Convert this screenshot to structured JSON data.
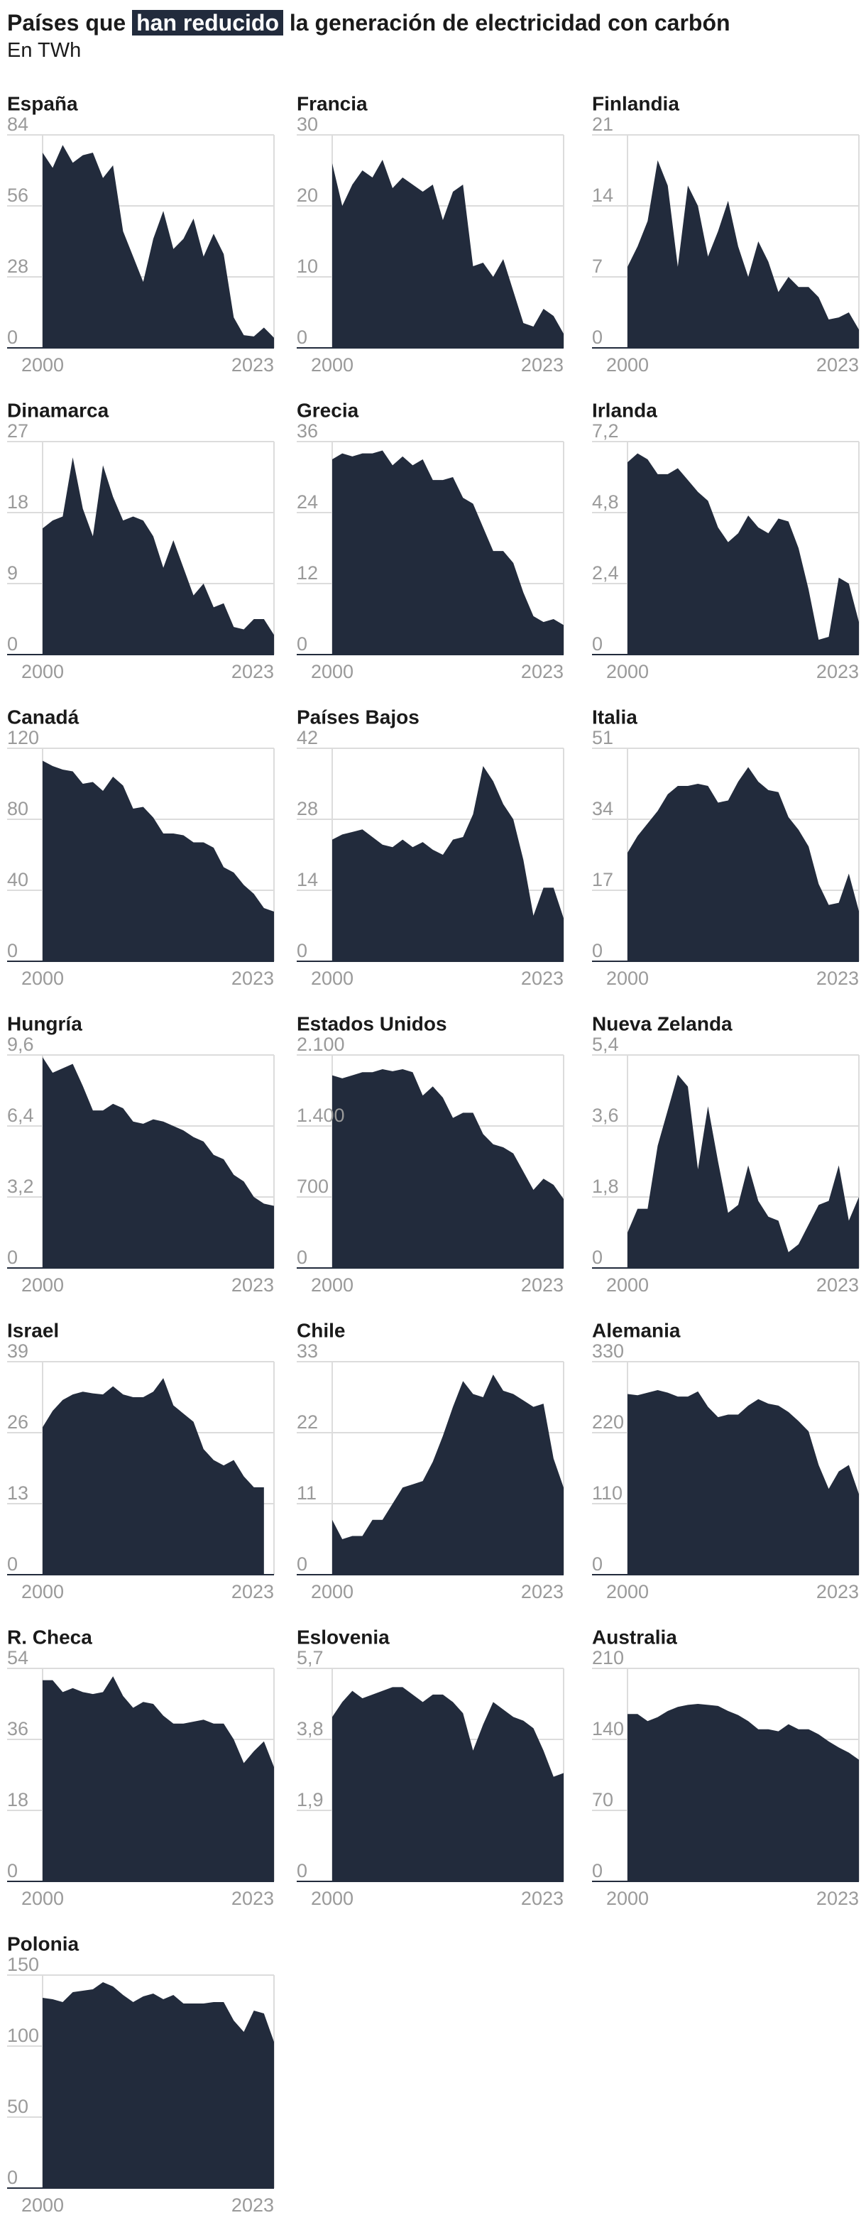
{
  "title_parts": [
    "Países que",
    "han reducido",
    "la generación de electricidad con carbón"
  ],
  "subtitle": "En TWh",
  "chart_data": [
    {
      "type": "area",
      "title": "España",
      "x": [
        2000,
        2001,
        2002,
        2003,
        2004,
        2005,
        2006,
        2007,
        2008,
        2009,
        2010,
        2011,
        2012,
        2013,
        2014,
        2015,
        2016,
        2017,
        2018,
        2019,
        2020,
        2021,
        2022,
        2023
      ],
      "xticks": [
        2000,
        2023
      ],
      "values": [
        77,
        71,
        80,
        73,
        76,
        77,
        67,
        72,
        46,
        36,
        26,
        43,
        54,
        39,
        43,
        51,
        36,
        45,
        37,
        12,
        5,
        4.5,
        8,
        4
      ],
      "ylim": [
        0,
        84
      ],
      "yticks": [
        0,
        28,
        56,
        84
      ],
      "color": "#222b3c"
    },
    {
      "type": "area",
      "title": "Francia",
      "x": [
        2000,
        2001,
        2002,
        2003,
        2004,
        2005,
        2006,
        2007,
        2008,
        2009,
        2010,
        2011,
        2012,
        2013,
        2014,
        2015,
        2016,
        2017,
        2018,
        2019,
        2020,
        2021,
        2022,
        2023
      ],
      "xticks": [
        2000,
        2023
      ],
      "values": [
        26,
        20,
        23,
        25,
        24,
        26.5,
        22.5,
        24,
        23,
        22,
        23,
        18,
        22,
        23,
        11.5,
        12,
        10,
        12.5,
        8,
        3.5,
        3,
        5.5,
        4.5,
        2
      ],
      "ylim": [
        0,
        30
      ],
      "yticks": [
        0,
        10,
        20,
        30
      ],
      "color": "#222b3c"
    },
    {
      "type": "area",
      "title": "Finlandia",
      "x": [
        2000,
        2001,
        2002,
        2003,
        2004,
        2005,
        2006,
        2007,
        2008,
        2009,
        2010,
        2011,
        2012,
        2013,
        2014,
        2015,
        2016,
        2017,
        2018,
        2019,
        2020,
        2021,
        2022,
        2023
      ],
      "xticks": [
        2000,
        2023
      ],
      "values": [
        8,
        10,
        12.5,
        18.5,
        16,
        8,
        16,
        14,
        9,
        11.5,
        14.5,
        10,
        7,
        10.5,
        8.5,
        5.5,
        7,
        6,
        6,
        5,
        2.8,
        3,
        3.5,
        1.8
      ],
      "ylim": [
        0,
        21
      ],
      "yticks": [
        0,
        7,
        14,
        21
      ],
      "color": "#222b3c"
    },
    {
      "type": "area",
      "title": "Dinamarca",
      "x": [
        2000,
        2001,
        2002,
        2003,
        2004,
        2005,
        2006,
        2007,
        2008,
        2009,
        2010,
        2011,
        2012,
        2013,
        2014,
        2015,
        2016,
        2017,
        2018,
        2019,
        2020,
        2021,
        2022,
        2023
      ],
      "xticks": [
        2000,
        2023
      ],
      "values": [
        16,
        17,
        17.5,
        25,
        18.5,
        15,
        24,
        20,
        17,
        17.5,
        17,
        15,
        11,
        14.5,
        11,
        7.5,
        9,
        6,
        6.5,
        3.5,
        3.2,
        4.5,
        4.5,
        2.5
      ],
      "ylim": [
        0,
        27
      ],
      "yticks": [
        0,
        9,
        18,
        27
      ],
      "color": "#222b3c"
    },
    {
      "type": "area",
      "title": "Grecia",
      "x": [
        2000,
        2001,
        2002,
        2003,
        2004,
        2005,
        2006,
        2007,
        2008,
        2009,
        2010,
        2011,
        2012,
        2013,
        2014,
        2015,
        2016,
        2017,
        2018,
        2019,
        2020,
        2021,
        2022,
        2023
      ],
      "xticks": [
        2000,
        2023
      ],
      "values": [
        33,
        34,
        33.5,
        34,
        34,
        34.5,
        32,
        33.5,
        32,
        33,
        29.5,
        29.5,
        30,
        26.5,
        25.5,
        21.5,
        17.5,
        17.5,
        15.5,
        10.5,
        6.5,
        5.5,
        6,
        5
      ],
      "ylim": [
        0,
        36
      ],
      "yticks": [
        0,
        12,
        24,
        36
      ],
      "color": "#222b3c"
    },
    {
      "type": "area",
      "title": "Irlanda",
      "x": [
        2000,
        2001,
        2002,
        2003,
        2004,
        2005,
        2006,
        2007,
        2008,
        2009,
        2010,
        2011,
        2012,
        2013,
        2014,
        2015,
        2016,
        2017,
        2018,
        2019,
        2020,
        2021,
        2022,
        2023
      ],
      "xticks": [
        2000,
        2023
      ],
      "values": [
        6.5,
        6.8,
        6.6,
        6.1,
        6.1,
        6.3,
        5.9,
        5.5,
        5.2,
        4.3,
        3.8,
        4.1,
        4.7,
        4.3,
        4.1,
        4.6,
        4.5,
        3.6,
        2.2,
        0.5,
        0.6,
        2.6,
        2.4,
        1.1
      ],
      "ylim": [
        0,
        7.2
      ],
      "yticks": [
        0,
        {
          "value": 2.4,
          "label": "2,4"
        },
        {
          "value": 4.8,
          "label": "4,8"
        },
        {
          "value": 7.2,
          "label": "7,2"
        }
      ],
      "color": "#222b3c"
    },
    {
      "type": "area",
      "title": "Canadá",
      "x": [
        2000,
        2001,
        2002,
        2003,
        2004,
        2005,
        2006,
        2007,
        2008,
        2009,
        2010,
        2011,
        2012,
        2013,
        2014,
        2015,
        2016,
        2017,
        2018,
        2019,
        2020,
        2021,
        2022,
        2023
      ],
      "xticks": [
        2000,
        2023
      ],
      "values": [
        113,
        110,
        108,
        107,
        100,
        101,
        96,
        104,
        99,
        86,
        87,
        81,
        72,
        72,
        71,
        67,
        67,
        64,
        53,
        50,
        43,
        38,
        30,
        28
      ],
      "ylim": [
        0,
        120
      ],
      "yticks": [
        0,
        40,
        80,
        120
      ],
      "color": "#222b3c"
    },
    {
      "type": "area",
      "title": "Países Bajos",
      "x": [
        2000,
        2001,
        2002,
        2003,
        2004,
        2005,
        2006,
        2007,
        2008,
        2009,
        2010,
        2011,
        2012,
        2013,
        2014,
        2015,
        2016,
        2017,
        2018,
        2019,
        2020,
        2021,
        2022,
        2023
      ],
      "xticks": [
        2000,
        2023
      ],
      "values": [
        24,
        25,
        25.5,
        26,
        24.5,
        23,
        22.5,
        24,
        22.5,
        23.5,
        22,
        21,
        24,
        24.5,
        29,
        38.5,
        35.5,
        31,
        28,
        20,
        9,
        14.5,
        14.5,
        8.5
      ],
      "ylim": [
        0,
        42
      ],
      "yticks": [
        0,
        14,
        28,
        42
      ],
      "color": "#222b3c"
    },
    {
      "type": "area",
      "title": "Italia",
      "x": [
        2000,
        2001,
        2002,
        2003,
        2004,
        2005,
        2006,
        2007,
        2008,
        2009,
        2010,
        2011,
        2012,
        2013,
        2014,
        2015,
        2016,
        2017,
        2018,
        2019,
        2020,
        2021,
        2022,
        2023
      ],
      "xticks": [
        2000,
        2023
      ],
      "values": [
        26,
        30,
        33,
        36,
        40,
        42,
        42,
        42.5,
        42,
        38,
        38.5,
        43,
        46.5,
        43,
        41,
        40.5,
        34.5,
        31.5,
        27.5,
        18.5,
        13.5,
        14,
        21,
        12
      ],
      "ylim": [
        0,
        51
      ],
      "yticks": [
        0,
        17,
        34,
        51
      ],
      "color": "#222b3c"
    },
    {
      "type": "area",
      "title": "Hungría",
      "x": [
        2000,
        2001,
        2002,
        2003,
        2004,
        2005,
        2006,
        2007,
        2008,
        2009,
        2010,
        2011,
        2012,
        2013,
        2014,
        2015,
        2016,
        2017,
        2018,
        2019,
        2020,
        2021,
        2022,
        2023
      ],
      "xticks": [
        2000,
        2023
      ],
      "values": [
        9.5,
        8.8,
        9,
        9.2,
        8.2,
        7.1,
        7.1,
        7.4,
        7.2,
        6.6,
        6.5,
        6.7,
        6.6,
        6.4,
        6.2,
        5.9,
        5.7,
        5.1,
        4.9,
        4.2,
        3.9,
        3.2,
        2.9,
        2.8
      ],
      "ylim": [
        0,
        9.6
      ],
      "yticks": [
        0,
        {
          "value": 3.2,
          "label": "3,2"
        },
        {
          "value": 6.4,
          "label": "6,4"
        },
        {
          "value": 9.6,
          "label": "9,6"
        }
      ],
      "color": "#222b3c"
    },
    {
      "type": "area",
      "title": "Estados Unidos",
      "x": [
        2000,
        2001,
        2002,
        2003,
        2004,
        2005,
        2006,
        2007,
        2008,
        2009,
        2010,
        2011,
        2012,
        2013,
        2014,
        2015,
        2016,
        2017,
        2018,
        2019,
        2020,
        2021,
        2022,
        2023
      ],
      "xticks": [
        2000,
        2023
      ],
      "values": [
        1900,
        1870,
        1900,
        1930,
        1930,
        1960,
        1940,
        1960,
        1930,
        1700,
        1790,
        1680,
        1480,
        1530,
        1530,
        1320,
        1220,
        1190,
        1130,
        950,
        770,
        880,
        820,
        680
      ],
      "ylim": [
        0,
        2100
      ],
      "yticks": [
        0,
        700,
        {
          "value": 1400,
          "label": "1.400"
        },
        {
          "value": 2100,
          "label": "2.100"
        }
      ],
      "color": "#222b3c"
    },
    {
      "type": "area",
      "title": "Nueva Zelanda",
      "x": [
        2000,
        2001,
        2002,
        2003,
        2004,
        2005,
        2006,
        2007,
        2008,
        2009,
        2010,
        2011,
        2012,
        2013,
        2014,
        2015,
        2016,
        2017,
        2018,
        2019,
        2020,
        2021,
        2022,
        2023
      ],
      "xticks": [
        2000,
        2023
      ],
      "values": [
        0.9,
        1.5,
        1.5,
        3.1,
        4.0,
        4.9,
        4.6,
        2.5,
        4.1,
        2.7,
        1.4,
        1.6,
        2.6,
        1.7,
        1.3,
        1.2,
        0.4,
        0.6,
        1.1,
        1.6,
        1.7,
        2.6,
        1.2,
        1.8
      ],
      "ylim": [
        0,
        5.4
      ],
      "yticks": [
        0,
        {
          "value": 1.8,
          "label": "1,8"
        },
        {
          "value": 3.6,
          "label": "3,6"
        },
        {
          "value": 5.4,
          "label": "5,4"
        }
      ],
      "color": "#222b3c"
    },
    {
      "type": "area",
      "title": "Israel",
      "x": [
        2000,
        2001,
        2002,
        2003,
        2004,
        2005,
        2006,
        2007,
        2008,
        2009,
        2010,
        2011,
        2012,
        2013,
        2014,
        2015,
        2016,
        2017,
        2018,
        2019,
        2020,
        2021,
        2022,
        2023
      ],
      "xticks": [
        2000,
        2023
      ],
      "values": [
        27,
        30,
        32,
        33,
        33.5,
        33.2,
        33,
        34.5,
        33,
        32.5,
        32.5,
        33.5,
        36,
        31,
        29.5,
        28,
        23,
        21,
        20,
        21,
        18,
        16,
        16,
        null
      ],
      "ylim": [
        0,
        39
      ],
      "yticks": [
        0,
        13,
        26,
        39
      ],
      "color": "#222b3c"
    },
    {
      "type": "area",
      "title": "Chile",
      "x": [
        2000,
        2001,
        2002,
        2003,
        2004,
        2005,
        2006,
        2007,
        2008,
        2009,
        2010,
        2011,
        2012,
        2013,
        2014,
        2015,
        2016,
        2017,
        2018,
        2019,
        2020,
        2021,
        2022,
        2023
      ],
      "xticks": [
        2000,
        2023
      ],
      "values": [
        8.5,
        5.5,
        6,
        6,
        8.5,
        8.5,
        11,
        13.5,
        14,
        14.5,
        17.5,
        21.5,
        26,
        30,
        28,
        27.5,
        31,
        28.5,
        28,
        27,
        26,
        26.5,
        18,
        13.5
      ],
      "ylim": [
        0,
        33
      ],
      "yticks": [
        0,
        11,
        22,
        33
      ],
      "color": "#222b3c"
    },
    {
      "type": "area",
      "title": "Alemania",
      "x": [
        2000,
        2001,
        2002,
        2003,
        2004,
        2005,
        2006,
        2007,
        2008,
        2009,
        2010,
        2011,
        2012,
        2013,
        2014,
        2015,
        2016,
        2017,
        2018,
        2019,
        2020,
        2021,
        2022,
        2023
      ],
      "xticks": [
        2000,
        2023
      ],
      "values": [
        280,
        278,
        282,
        286,
        282,
        276,
        276,
        284,
        260,
        244,
        248,
        248,
        262,
        272,
        265,
        262,
        252,
        238,
        222,
        170,
        133,
        160,
        170,
        125
      ],
      "ylim": [
        0,
        330
      ],
      "yticks": [
        0,
        110,
        220,
        330
      ],
      "color": "#222b3c"
    },
    {
      "type": "area",
      "title": "R. Checa",
      "x": [
        2000,
        2001,
        2002,
        2003,
        2004,
        2005,
        2006,
        2007,
        2008,
        2009,
        2010,
        2011,
        2012,
        2013,
        2014,
        2015,
        2016,
        2017,
        2018,
        2019,
        2020,
        2021,
        2022,
        2023
      ],
      "xticks": [
        2000,
        2023
      ],
      "values": [
        51,
        51,
        48,
        49,
        48,
        47.5,
        48,
        52,
        47,
        44,
        45.5,
        45,
        42,
        40,
        40,
        40.5,
        41,
        40,
        40,
        36,
        30,
        33,
        35.5,
        29
      ],
      "ylim": [
        0,
        54
      ],
      "yticks": [
        0,
        18,
        36,
        54
      ],
      "color": "#222b3c"
    },
    {
      "type": "area",
      "title": "Eslovenia",
      "x": [
        2000,
        2001,
        2002,
        2003,
        2004,
        2005,
        2006,
        2007,
        2008,
        2009,
        2010,
        2011,
        2012,
        2013,
        2014,
        2015,
        2016,
        2017,
        2018,
        2019,
        2020,
        2021,
        2022,
        2023
      ],
      "xticks": [
        2000,
        2023
      ],
      "values": [
        4.4,
        4.8,
        5.1,
        4.9,
        5.0,
        5.1,
        5.2,
        5.2,
        5.0,
        4.8,
        5.0,
        5.0,
        4.8,
        4.5,
        3.5,
        4.2,
        4.8,
        4.6,
        4.4,
        4.3,
        4.1,
        3.5,
        2.8,
        2.9
      ],
      "ylim": [
        0,
        5.7
      ],
      "yticks": [
        0,
        {
          "value": 1.9,
          "label": "1,9"
        },
        {
          "value": 3.8,
          "label": "3,8"
        },
        {
          "value": 5.7,
          "label": "5,7"
        }
      ],
      "color": "#222b3c"
    },
    {
      "type": "area",
      "title": "Australia",
      "x": [
        2000,
        2001,
        2002,
        2003,
        2004,
        2005,
        2006,
        2007,
        2008,
        2009,
        2010,
        2011,
        2012,
        2013,
        2014,
        2015,
        2016,
        2017,
        2018,
        2019,
        2020,
        2021,
        2022,
        2023
      ],
      "xticks": [
        2000,
        2023
      ],
      "values": [
        165,
        165,
        158,
        162,
        168,
        172,
        174,
        175,
        174,
        173,
        168,
        164,
        158,
        150,
        150,
        148,
        155,
        150,
        150,
        145,
        138,
        132,
        127,
        120
      ],
      "ylim": [
        0,
        210
      ],
      "yticks": [
        0,
        70,
        140,
        210
      ],
      "color": "#222b3c"
    },
    {
      "type": "area",
      "title": "Polonia",
      "x": [
        2000,
        2001,
        2002,
        2003,
        2004,
        2005,
        2006,
        2007,
        2008,
        2009,
        2010,
        2011,
        2012,
        2013,
        2014,
        2015,
        2016,
        2017,
        2018,
        2019,
        2020,
        2021,
        2022,
        2023
      ],
      "xticks": [
        2000,
        2023
      ],
      "values": [
        134,
        133,
        131,
        138,
        139,
        140,
        145,
        142,
        136,
        131,
        135,
        137,
        133,
        136,
        130,
        130,
        130,
        131,
        131,
        118,
        110,
        125,
        123,
        103
      ],
      "ylim": [
        0,
        150
      ],
      "yticks": [
        0,
        50,
        100,
        150
      ],
      "color": "#222b3c"
    }
  ]
}
